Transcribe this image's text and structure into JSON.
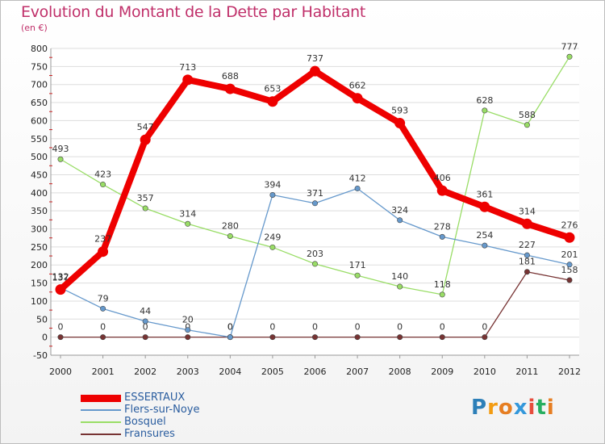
{
  "chart_data": {
    "type": "line",
    "title": "Evolution du Montant de la Dette par Habitant",
    "subtitle": "(en €)",
    "categories": [
      "2000",
      "2001",
      "2002",
      "2003",
      "2004",
      "2005",
      "2006",
      "2007",
      "2008",
      "2009",
      "2010",
      "2011",
      "2012"
    ],
    "ylim": [
      -50,
      800
    ],
    "yticks": [
      -50,
      0,
      50,
      100,
      150,
      200,
      250,
      300,
      350,
      400,
      450,
      500,
      550,
      600,
      650,
      700,
      750,
      800
    ],
    "grid": true,
    "legend_position": "bottom-left",
    "series": [
      {
        "name": "ESSERTAUX",
        "color": "#ee0000",
        "values": [
          132,
          237,
          547,
          713,
          688,
          653,
          737,
          662,
          593,
          406,
          361,
          314,
          276
        ]
      },
      {
        "name": "Flers-sur-Noye",
        "color": "#6699cc",
        "values": [
          137,
          79,
          44,
          20,
          0,
          394,
          371,
          412,
          324,
          278,
          254,
          227,
          201
        ]
      },
      {
        "name": "Bosquel",
        "color": "#99dd66",
        "values": [
          493,
          423,
          357,
          314,
          280,
          249,
          203,
          171,
          140,
          118,
          628,
          588,
          777
        ]
      },
      {
        "name": "Fransures",
        "color": "#773333",
        "values": [
          0,
          0,
          0,
          0,
          0,
          0,
          0,
          0,
          0,
          0,
          0,
          181,
          158
        ]
      }
    ]
  },
  "logo": {
    "letters": [
      "P",
      "r",
      "o",
      "x",
      "i",
      "t",
      "i"
    ],
    "colors": [
      "#2c7fb8",
      "#f39c12",
      "#e67e22",
      "#3498db",
      "#e74c3c",
      "#27ae60",
      "#e67e22"
    ]
  }
}
